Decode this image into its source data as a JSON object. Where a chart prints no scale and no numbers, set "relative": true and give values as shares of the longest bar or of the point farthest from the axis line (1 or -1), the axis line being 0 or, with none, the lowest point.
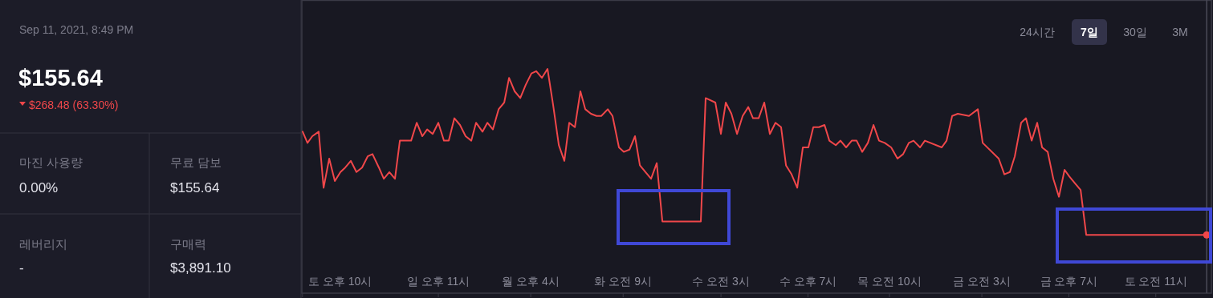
{
  "chart_data": [
    {
      "type": "other",
      "annotations": [
        "Sep 11, 2021, 8:49 PM",
        "$155.64",
        "$268.48 (63.30%)",
        "마진 사용량",
        "0.00%",
        "무료 담보",
        "$155.64",
        "레버리지",
        "-",
        "구매력",
        "$3,891.10"
      ]
    },
    {
      "type": "line",
      "relative": true,
      "xlim": [
        "2021-09-04T21:53",
        "2021-09-11T21:14"
      ],
      "xticks": [
        {
          "value": "2021-09-04T22:00",
          "label": "토 오후 10시"
        },
        {
          "value": "2021-09-05T23:00",
          "label": "일 오후 11시"
        },
        {
          "value": "2021-09-06T16:00",
          "label": "월 오후 4시"
        },
        {
          "value": "2021-09-07T09:00",
          "label": "화 오전 9시"
        },
        {
          "value": "2021-09-08T03:00",
          "label": "수 오전 3시"
        },
        {
          "value": "2021-09-08T19:00",
          "label": "수 오후 7시"
        },
        {
          "value": "2021-09-09T10:00",
          "label": "목 오전 10시"
        },
        {
          "value": "2021-09-10T03:00",
          "label": "금 오전 3시"
        },
        {
          "value": "2021-09-10T19:00",
          "label": "금 오후 7시"
        },
        {
          "value": "2021-09-11T11:00",
          "label": "토 오전 11시"
        }
      ],
      "annotations": [
        "24시간",
        "7일",
        "30일",
        "3M"
      ],
      "ref_lines": [
        {
          "axis": "x",
          "value": "2021-09-11T20:22",
          "color": "#4a4a58"
        }
      ],
      "series": [
        {
          "type": "line",
          "color": "#f0474a",
          "x": [
            "2021-09-04T22:02",
            "2021-09-04T22:55",
            "2021-09-04T23:49",
            "2021-09-05T00:59",
            "2021-09-05T01:53",
            "2021-09-05T02:55",
            "2021-09-05T03:57",
            "2021-09-05T04:59",
            "2021-09-05T05:52",
            "2021-09-05T06:54",
            "2021-09-05T07:56",
            "2021-09-05T08:58",
            "2021-09-05T10:00",
            "2021-09-05T10:53",
            "2021-09-05T12:04",
            "2021-09-05T12:58",
            "2021-09-05T13:59",
            "2021-09-05T15:01",
            "2021-09-05T15:55",
            "2021-09-05T16:56",
            "2021-09-05T17:59",
            "2021-09-05T19:01",
            "2021-09-05T20:03",
            "2021-09-05T20:56",
            "2021-09-05T21:58",
            "2021-09-05T23:00",
            "2021-09-06T00:02",
            "2021-09-06T00:55",
            "2021-09-06T01:57",
            "2021-09-06T02:59",
            "2021-09-06T04:01",
            "2021-09-06T05:04",
            "2021-09-06T05:56",
            "2021-09-06T07:07",
            "2021-09-06T08:01",
            "2021-09-06T09:02",
            "2021-09-06T10:05",
            "2021-09-06T11:07",
            "2021-09-06T12:00",
            "2021-09-06T13:02",
            "2021-09-06T14:04",
            "2021-09-06T15:06",
            "2021-09-06T16:08",
            "2021-09-06T17:01",
            "2021-09-06T18:03",
            "2021-09-06T19:05",
            "2021-09-06T20:07",
            "2021-09-06T21:10",
            "2021-09-06T22:11",
            "2021-09-06T23:05",
            "2021-09-07T00:07",
            "2021-09-07T01:08",
            "2021-09-07T02:02",
            "2021-09-07T03:04",
            "2021-09-07T04:06",
            "2021-09-07T04:59",
            "2021-09-07T06:10",
            "2021-09-07T07:03",
            "2021-09-07T08:14",
            "2021-09-07T09:07",
            "2021-09-07T10:10",
            "2021-09-07T11:11",
            "2021-09-07T12:05",
            "2021-09-07T13:07",
            "2021-09-07T14:08",
            "2021-09-07T15:11",
            "2021-09-07T16:13",
            "2021-09-07T23:18",
            "2021-09-08T00:11",
            "2021-09-08T01:58",
            "2021-09-08T02:59",
            "2021-09-08T03:53",
            "2021-09-08T04:55",
            "2021-09-08T05:57",
            "2021-09-08T06:59",
            "2021-09-08T08:01",
            "2021-09-08T08:54",
            "2021-09-08T09:56",
            "2021-09-08T10:58",
            "2021-09-08T12:00",
            "2021-09-08T13:02",
            "2021-09-08T14:04",
            "2021-09-08T14:58",
            "2021-09-08T15:59",
            "2021-09-08T17:02",
            "2021-09-08T18:04",
            "2021-09-08T19:05",
            "2021-09-08T19:59",
            "2021-09-08T21:01",
            "2021-09-08T22:03",
            "2021-09-08T22:56",
            "2021-09-09T00:07",
            "2021-09-09T01:00",
            "2021-09-09T02:02",
            "2021-09-09T03:04",
            "2021-09-09T03:58",
            "2021-09-09T04:59",
            "2021-09-09T06:02",
            "2021-09-09T07:04",
            "2021-09-09T08:05",
            "2021-09-09T09:08",
            "2021-09-09T10:19",
            "2021-09-09T11:29",
            "2021-09-09T12:31",
            "2021-09-09T13:34",
            "2021-09-09T14:26",
            "2021-09-09T15:38",
            "2021-09-09T16:31",
            "2021-09-09T19:37",
            "2021-09-09T20:30",
            "2021-09-09T21:32",
            "2021-09-09T22:34",
            "2021-09-10T00:38",
            "2021-09-10T02:16",
            "2021-09-10T03:09",
            "2021-09-10T06:06",
            "2021-09-10T07:08",
            "2021-09-10T08:10",
            "2021-09-10T09:04",
            "2021-09-10T10:14",
            "2021-09-10T11:07",
            "2021-09-10T12:10",
            "2021-09-10T13:11",
            "2021-09-10T14:05",
            "2021-09-10T15:07",
            "2021-09-10T16:09",
            "2021-09-10T17:11",
            "2021-09-10T18:13",
            "2021-09-10T19:06",
            "2021-09-10T20:08",
            "2021-09-10T21:10",
            "2021-09-10T22:12",
            "2021-09-11T20:22"
          ],
          "values": [
            0.72,
            0.67,
            0.7,
            0.72,
            0.47,
            0.6,
            0.5,
            0.54,
            0.56,
            0.59,
            0.54,
            0.56,
            0.61,
            0.62,
            0.56,
            0.51,
            0.54,
            0.51,
            0.68,
            0.68,
            0.68,
            0.76,
            0.7,
            0.73,
            0.71,
            0.76,
            0.68,
            0.68,
            0.78,
            0.75,
            0.7,
            0.68,
            0.76,
            0.72,
            0.76,
            0.73,
            0.82,
            0.85,
            0.96,
            0.9,
            0.87,
            0.93,
            0.98,
            0.99,
            0.96,
            1,
            0.84,
            0.66,
            0.59,
            0.76,
            0.74,
            0.9,
            0.82,
            0.8,
            0.79,
            0.79,
            0.82,
            0.79,
            0.65,
            0.63,
            0.64,
            0.7,
            0.57,
            0.54,
            0.51,
            0.58,
            0.32,
            0.32,
            0.87,
            0.85,
            0.71,
            0.85,
            0.8,
            0.71,
            0.79,
            0.83,
            0.78,
            0.78,
            0.85,
            0.71,
            0.76,
            0.74,
            0.57,
            0.53,
            0.47,
            0.65,
            0.65,
            0.74,
            0.74,
            0.75,
            0.68,
            0.66,
            0.68,
            0.65,
            0.68,
            0.68,
            0.63,
            0.67,
            0.75,
            0.68,
            0.67,
            0.65,
            0.6,
            0.62,
            0.67,
            0.68,
            0.65,
            0.68,
            0.65,
            0.68,
            0.79,
            0.8,
            0.79,
            0.82,
            0.67,
            0.6,
            0.53,
            0.54,
            0.61,
            0.76,
            0.78,
            0.68,
            0.76,
            0.65,
            0.63,
            0.51,
            0.43,
            0.55,
            0.52,
            0.49,
            0.46,
            0.26,
            0.26
          ]
        },
        {
          "type": "scatter",
          "color": "#f0474a",
          "marker": "circle",
          "x": [
            "2021-09-11T20:22"
          ],
          "values": [
            0.26
          ]
        }
      ]
    }
  ]
}
